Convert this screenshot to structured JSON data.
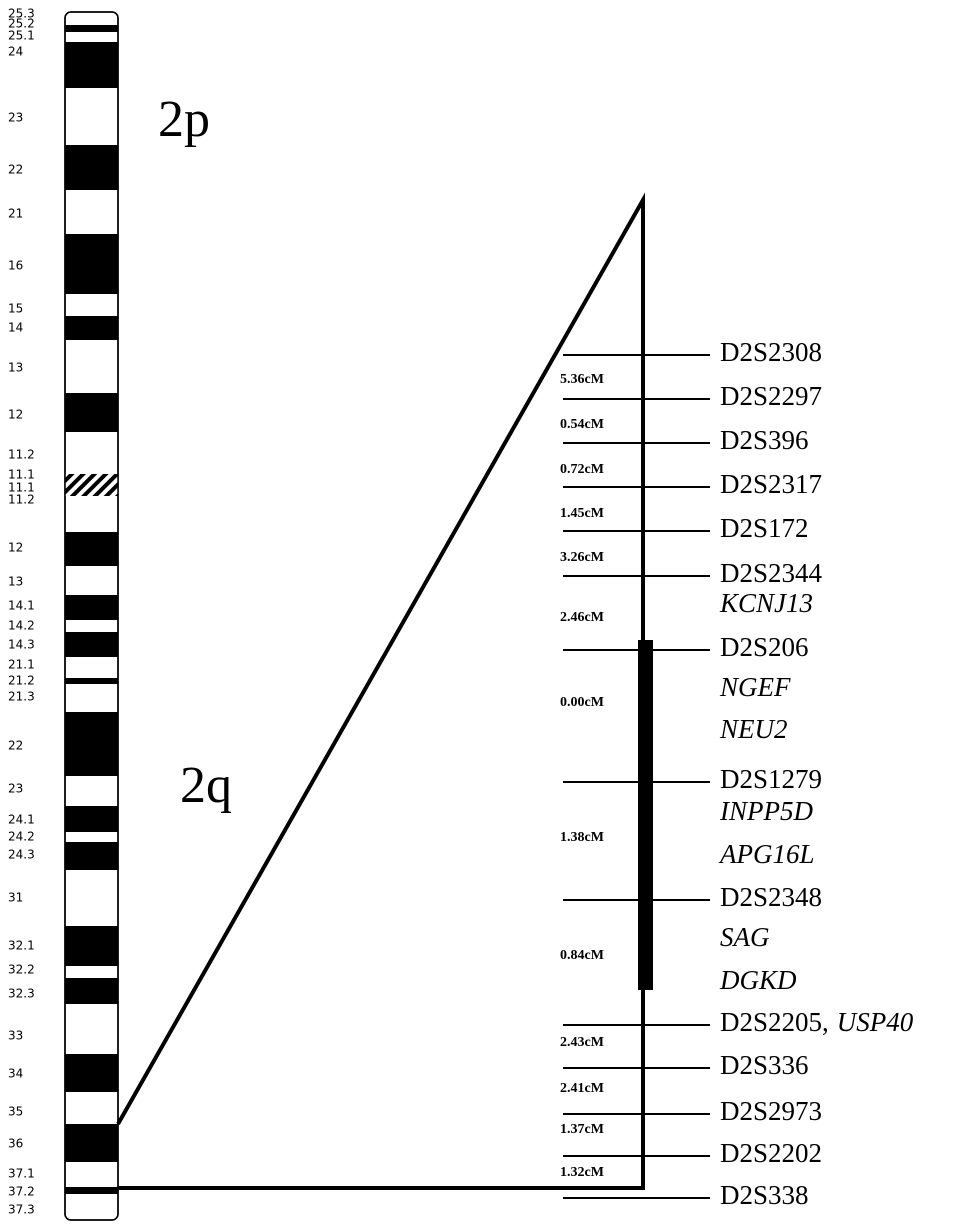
{
  "chromosome_bands": [
    "25.3",
    "25.2",
    "25.1",
    "24",
    "23",
    "22",
    "21",
    "16",
    "15",
    "14",
    "13",
    "12",
    "11.2",
    "11.1",
    "11.1",
    "11.2",
    "12",
    "13",
    "14.1",
    "14.2",
    "14.3",
    "21.1",
    "21.2",
    "21.3",
    "22",
    "23",
    "24.1",
    "24.2",
    "24.3",
    "31",
    "32.1",
    "32.2",
    "32.3",
    "33",
    "34",
    "35",
    "36",
    "37.1",
    "37.2",
    "37.3"
  ],
  "arms": {
    "p": "2p",
    "q": "2q"
  },
  "markers": [
    {
      "name": "D2S2308"
    },
    {
      "name": "D2S2297"
    },
    {
      "name": "D2S396"
    },
    {
      "name": "D2S2317"
    },
    {
      "name": "D2S172"
    },
    {
      "name": "D2S2344"
    },
    {
      "gene": "KCNJ13"
    },
    {
      "name": "D2S206"
    },
    {
      "gene": "NGEF"
    },
    {
      "gene": "NEU2"
    },
    {
      "name": "D2S1279"
    },
    {
      "gene": "INPP5D"
    },
    {
      "gene": "APG16L"
    },
    {
      "name": "D2S2348"
    },
    {
      "gene": "SAG"
    },
    {
      "gene": "DGKD"
    },
    {
      "name": "D2S2205,",
      "gene": "USP40"
    },
    {
      "name": "D2S336"
    },
    {
      "name": "D2S2973"
    },
    {
      "name": "D2S2202"
    },
    {
      "name": "D2S338"
    }
  ],
  "distances": [
    "5.36cM",
    "0.54cM",
    "0.72cM",
    "1.45cM",
    "3.26cM",
    "2.46cM",
    "0.00cM",
    "1.38cM",
    "0.84cM",
    "2.43cM",
    "2.41cM",
    "1.37cM",
    "1.32cM"
  ]
}
